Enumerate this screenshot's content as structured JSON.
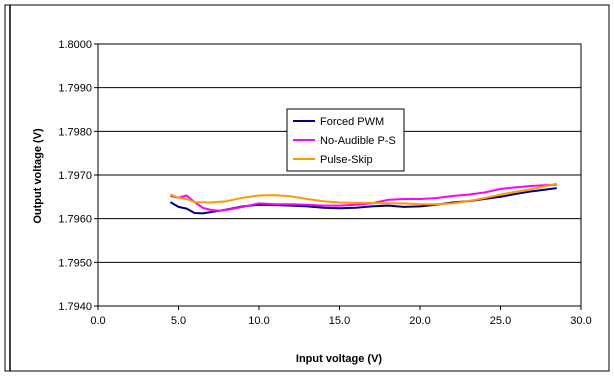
{
  "chart_data": {
    "type": "line",
    "xlabel": "Input voltage (V)",
    "ylabel": "Output voltage (V)",
    "xlim": [
      0,
      30
    ],
    "ylim": [
      1.794,
      1.8
    ],
    "x_ticks": [
      "0.0",
      "5.0",
      "10.0",
      "15.0",
      "20.0",
      "25.0",
      "30.0"
    ],
    "y_ticks": [
      "1.7940",
      "1.7950",
      "1.7960",
      "1.7970",
      "1.7980",
      "1.7990",
      "1.8000"
    ],
    "grid": "horizontal",
    "legend_position": "center",
    "series": [
      {
        "name": "Forced PWM",
        "color": "#000080",
        "x": [
          4.5,
          5.0,
          5.5,
          6.0,
          6.5,
          7.0,
          7.5,
          8.0,
          9.0,
          10.0,
          11.0,
          12.0,
          13.0,
          14.0,
          15.0,
          16.0,
          17.0,
          18.0,
          19.0,
          20.0,
          21.0,
          22.0,
          23.0,
          24.0,
          25.0,
          26.0,
          27.0,
          28.5
        ],
        "y": [
          1.79638,
          1.79627,
          1.79623,
          1.79613,
          1.79612,
          1.79615,
          1.79618,
          1.79621,
          1.79628,
          1.79632,
          1.79631,
          1.7963,
          1.79628,
          1.79625,
          1.79624,
          1.79625,
          1.79628,
          1.7963,
          1.79627,
          1.79628,
          1.79632,
          1.79637,
          1.7964,
          1.79645,
          1.7965,
          1.79657,
          1.79663,
          1.7967
        ]
      },
      {
        "name": "No-Audible P-S",
        "color": "#ff00ff",
        "x": [
          4.5,
          5.0,
          5.5,
          6.0,
          6.5,
          7.0,
          7.5,
          8.0,
          9.0,
          10.0,
          11.0,
          12.0,
          13.0,
          14.0,
          15.0,
          16.0,
          17.0,
          18.0,
          19.0,
          20.0,
          21.0,
          22.0,
          23.0,
          24.0,
          25.0,
          26.0,
          27.0,
          28.5
        ],
        "y": [
          1.79652,
          1.79648,
          1.79653,
          1.79638,
          1.79625,
          1.7962,
          1.79618,
          1.7962,
          1.79627,
          1.79635,
          1.79633,
          1.79633,
          1.79632,
          1.7963,
          1.7963,
          1.79632,
          1.79635,
          1.79643,
          1.79645,
          1.79645,
          1.79647,
          1.79652,
          1.79655,
          1.7966,
          1.79668,
          1.79672,
          1.79675,
          1.79678
        ]
      },
      {
        "name": "Pulse-Skip",
        "color": "#ff9900",
        "x": [
          4.5,
          5.0,
          5.5,
          6.0,
          7.0,
          8.0,
          9.0,
          10.0,
          11.0,
          12.0,
          13.0,
          14.0,
          15.0,
          16.0,
          17.0,
          18.0,
          19.0,
          20.0,
          21.0,
          22.0,
          23.0,
          24.0,
          25.0,
          26.0,
          27.0,
          28.5
        ],
        "y": [
          1.79655,
          1.79648,
          1.79645,
          1.79638,
          1.79637,
          1.7964,
          1.79648,
          1.79653,
          1.79654,
          1.79651,
          1.79645,
          1.7964,
          1.79637,
          1.79636,
          1.79636,
          1.79635,
          1.79635,
          1.79633,
          1.79633,
          1.79635,
          1.7964,
          1.79647,
          1.79655,
          1.79662,
          1.79668,
          1.7968
        ]
      }
    ]
  }
}
